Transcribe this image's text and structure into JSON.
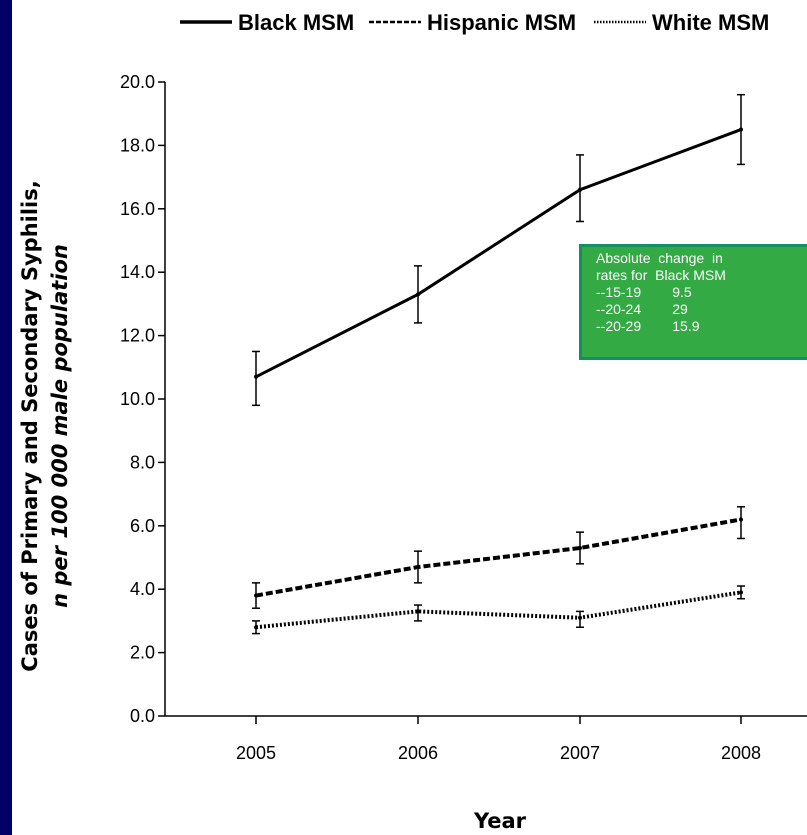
{
  "chart_data": {
    "type": "line",
    "title": "",
    "xlabel": "Year",
    "ylabel_line1": "Cases of Primary and Secondary Syphilis,",
    "ylabel_line2": "n per 100 000 male population",
    "x": [
      "2005",
      "2006",
      "2007",
      "2008"
    ],
    "ylim": [
      0,
      20
    ],
    "yticks": [
      "0.0",
      "2.0",
      "4.0",
      "6.0",
      "8.0",
      "10.0",
      "12.0",
      "14.0",
      "16.0",
      "18.0",
      "20.0"
    ],
    "grid": false,
    "legend_position": "top",
    "series": [
      {
        "name": "Black MSM",
        "style": "solid",
        "color": "#000000",
        "values": [
          10.7,
          13.3,
          16.6,
          18.5
        ],
        "error_low": [
          9.8,
          12.4,
          15.6,
          17.4
        ],
        "error_high": [
          11.5,
          14.2,
          17.7,
          19.6
        ]
      },
      {
        "name": "Hispanic MSM",
        "style": "dashed",
        "color": "#000000",
        "values": [
          3.8,
          4.7,
          5.3,
          6.2
        ],
        "error_low": [
          3.4,
          4.2,
          4.8,
          5.6
        ],
        "error_high": [
          4.2,
          5.2,
          5.8,
          6.6
        ]
      },
      {
        "name": "White MSM",
        "style": "dotted",
        "color": "#000000",
        "values": [
          2.8,
          3.3,
          3.1,
          3.9
        ],
        "error_low": [
          2.6,
          3.0,
          2.8,
          3.7
        ],
        "error_high": [
          3.0,
          3.5,
          3.3,
          4.1
        ]
      }
    ]
  },
  "annotation": {
    "lines": [
      "Absolute  change  in",
      "rates for  Black MSM",
      "--15-19        9.5",
      "--20-24        29",
      "--20-29        15.9"
    ]
  },
  "colors": {
    "slide_background": "#000066",
    "annotation_fill": "#33aa44",
    "annotation_border": "#139063"
  }
}
